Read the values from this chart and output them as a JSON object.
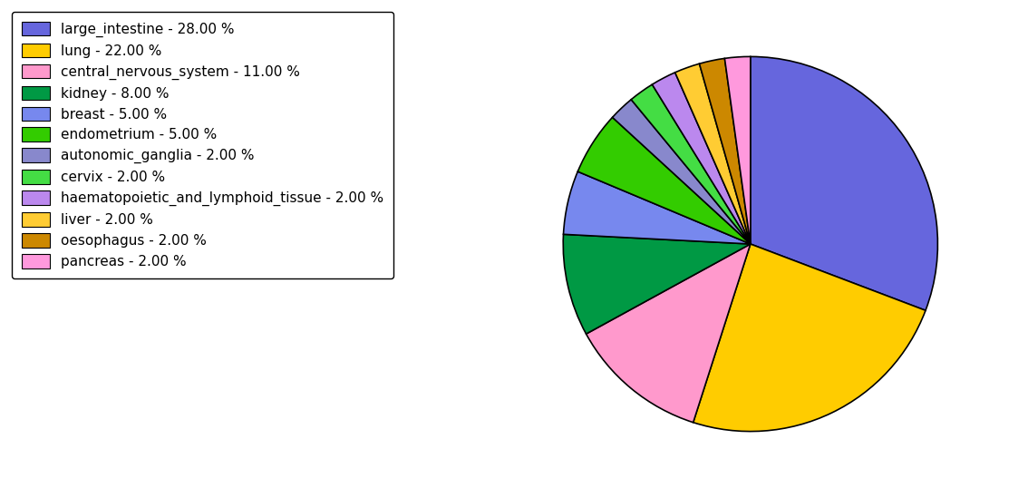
{
  "labels": [
    "large_intestine",
    "lung",
    "central_nervous_system",
    "kidney",
    "breast",
    "endometrium",
    "autonomic_ganglia",
    "cervix",
    "haematopoietic_and_lymphoid_tissue",
    "liver",
    "oesophagus",
    "pancreas"
  ],
  "values": [
    28,
    22,
    11,
    8,
    5,
    5,
    2,
    2,
    2,
    2,
    2,
    2
  ],
  "colors": [
    "#6666dd",
    "#ffcc00",
    "#ff99cc",
    "#009944",
    "#7788ee",
    "#33cc00",
    "#8888cc",
    "#44dd44",
    "#bb88ee",
    "#ffcc33",
    "#cc8800",
    "#ff99dd"
  ],
  "legend_labels": [
    "large_intestine - 28.00 %",
    "lung - 22.00 %",
    "central_nervous_system - 11.00 %",
    "kidney - 8.00 %",
    "breast - 5.00 %",
    "endometrium - 5.00 %",
    "autonomic_ganglia - 2.00 %",
    "cervix - 2.00 %",
    "haematopoietic_and_lymphoid_tissue - 2.00 %",
    "liver - 2.00 %",
    "oesophagus - 2.00 %",
    "pancreas - 2.00 %"
  ],
  "background_color": "#ffffff",
  "figsize": [
    11.34,
    5.38
  ],
  "dpi": 100
}
